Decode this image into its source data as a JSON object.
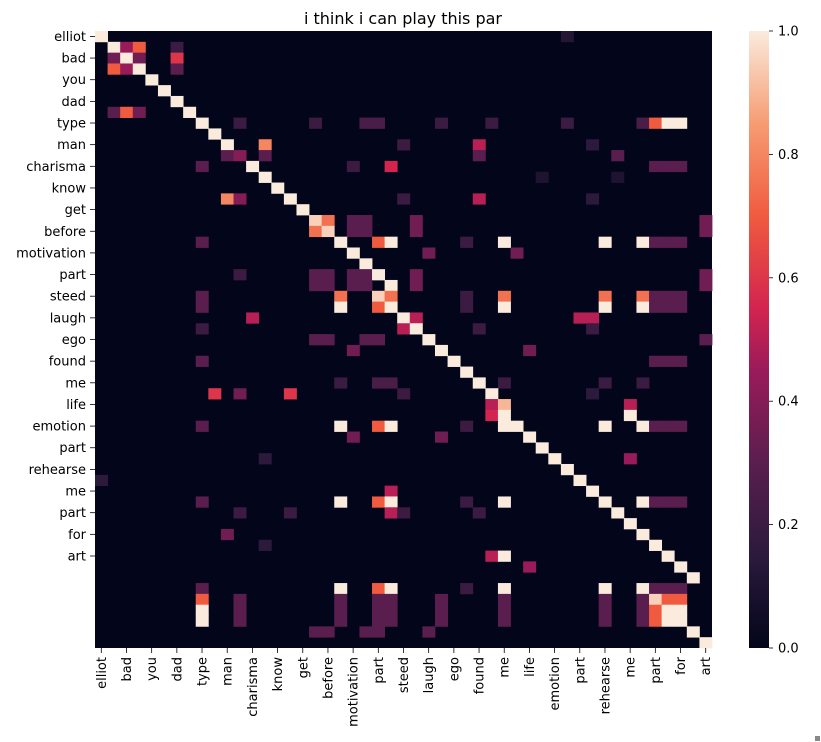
{
  "chart_data": {
    "type": "heatmap",
    "title": "i think i can play this par",
    "tokens": [
      "elliot",
      "",
      "bad",
      "",
      "you",
      "",
      "dad",
      "",
      "type",
      "",
      "man",
      "",
      "charisma",
      "",
      "know",
      "",
      "get",
      "",
      "before",
      "",
      "motivation",
      "",
      "part",
      "",
      "steed",
      "",
      "laugh",
      "",
      "ego",
      "",
      "found",
      "",
      "me",
      "",
      "life",
      "",
      "emotion",
      "",
      "part",
      "",
      "rehearse",
      "",
      "me",
      "",
      "part",
      "",
      "for",
      "",
      "art",
      ""
    ],
    "row_tick_labels": [
      "elliot",
      "bad",
      "you",
      "dad",
      "type",
      "man",
      "charisma",
      "know",
      "get",
      "before",
      "motivation",
      "part",
      "steed",
      "laugh",
      "ego",
      "found",
      "me",
      "life",
      "emotion",
      "part",
      "rehearse",
      "me",
      "part",
      "for",
      "art"
    ],
    "col_tick_labels": [
      "elliot",
      "bad",
      "you",
      "dad",
      "type",
      "man",
      "charisma",
      "know",
      "get",
      "before",
      "motivation",
      "part",
      "steed",
      "laugh",
      "ego",
      "found",
      "me",
      "life",
      "emotion",
      "part",
      "rehearse",
      "me",
      "part",
      "for",
      "art"
    ],
    "colorbar": {
      "ticks": [
        "0.0",
        "0.2",
        "0.4",
        "0.6",
        "0.8",
        "1.0"
      ],
      "vmin": 0.0,
      "vmax": 1.0
    },
    "cells": [
      [
        0,
        0,
        1.0
      ],
      [
        0,
        37,
        0.12
      ],
      [
        1,
        1,
        1.0
      ],
      [
        1,
        2,
        0.45
      ],
      [
        1,
        3,
        0.7
      ],
      [
        1,
        6,
        0.2
      ],
      [
        2,
        1,
        0.35
      ],
      [
        2,
        2,
        1.0
      ],
      [
        2,
        3,
        0.35
      ],
      [
        2,
        6,
        0.6
      ],
      [
        3,
        1,
        0.7
      ],
      [
        3,
        2,
        0.45
      ],
      [
        3,
        3,
        1.0
      ],
      [
        3,
        6,
        0.3
      ],
      [
        4,
        4,
        1.0
      ],
      [
        5,
        5,
        1.0
      ],
      [
        6,
        6,
        1.0
      ],
      [
        7,
        1,
        0.3
      ],
      [
        7,
        2,
        0.7
      ],
      [
        7,
        3,
        0.35
      ],
      [
        7,
        7,
        1.0
      ],
      [
        8,
        8,
        1.0
      ],
      [
        8,
        11,
        0.2
      ],
      [
        8,
        17,
        0.2
      ],
      [
        8,
        21,
        0.25
      ],
      [
        8,
        22,
        0.25
      ],
      [
        8,
        27,
        0.2
      ],
      [
        8,
        31,
        0.2
      ],
      [
        8,
        37,
        0.2
      ],
      [
        8,
        43,
        0.25
      ],
      [
        8,
        44,
        0.7
      ],
      [
        8,
        45,
        1.0
      ],
      [
        8,
        46,
        1.0
      ],
      [
        9,
        9,
        1.0
      ],
      [
        10,
        10,
        1.0
      ],
      [
        10,
        13,
        0.8
      ],
      [
        10,
        24,
        0.2
      ],
      [
        10,
        30,
        0.5
      ],
      [
        10,
        39,
        0.15
      ],
      [
        11,
        10,
        0.3
      ],
      [
        11,
        11,
        0.4
      ],
      [
        11,
        13,
        0.3
      ],
      [
        11,
        30,
        0.3
      ],
      [
        11,
        41,
        0.3
      ],
      [
        12,
        8,
        0.3
      ],
      [
        12,
        12,
        1.0
      ],
      [
        12,
        20,
        0.2
      ],
      [
        12,
        23,
        0.55
      ],
      [
        12,
        44,
        0.3
      ],
      [
        12,
        45,
        0.3
      ],
      [
        12,
        46,
        0.3
      ],
      [
        13,
        13,
        1.0
      ],
      [
        13,
        35,
        0.1
      ],
      [
        13,
        41,
        0.1
      ],
      [
        14,
        14,
        1.0
      ],
      [
        15,
        10,
        0.8
      ],
      [
        15,
        11,
        0.4
      ],
      [
        15,
        15,
        1.0
      ],
      [
        15,
        24,
        0.2
      ],
      [
        15,
        30,
        0.5
      ],
      [
        15,
        39,
        0.15
      ],
      [
        16,
        16,
        1.0
      ],
      [
        17,
        17,
        0.95
      ],
      [
        17,
        18,
        0.75
      ],
      [
        17,
        20,
        0.3
      ],
      [
        17,
        21,
        0.3
      ],
      [
        17,
        25,
        0.35
      ],
      [
        17,
        48,
        0.35
      ],
      [
        18,
        17,
        0.75
      ],
      [
        18,
        18,
        0.95
      ],
      [
        18,
        20,
        0.3
      ],
      [
        18,
        21,
        0.3
      ],
      [
        18,
        25,
        0.35
      ],
      [
        18,
        48,
        0.35
      ],
      [
        19,
        8,
        0.3
      ],
      [
        19,
        19,
        1.0
      ],
      [
        19,
        22,
        0.7
      ],
      [
        19,
        23,
        1.0
      ],
      [
        19,
        29,
        0.2
      ],
      [
        19,
        32,
        1.0
      ],
      [
        19,
        40,
        1.0
      ],
      [
        19,
        43,
        1.0
      ],
      [
        19,
        44,
        0.3
      ],
      [
        19,
        45,
        0.3
      ],
      [
        19,
        46,
        0.3
      ],
      [
        20,
        20,
        1.0
      ],
      [
        20,
        26,
        0.35
      ],
      [
        20,
        33,
        0.35
      ],
      [
        21,
        21,
        1.0
      ],
      [
        22,
        11,
        0.2
      ],
      [
        22,
        17,
        0.3
      ],
      [
        22,
        18,
        0.3
      ],
      [
        22,
        20,
        0.3
      ],
      [
        22,
        21,
        0.3
      ],
      [
        22,
        22,
        1.0
      ],
      [
        22,
        25,
        0.35
      ],
      [
        22,
        48,
        0.35
      ],
      [
        23,
        17,
        0.3
      ],
      [
        23,
        18,
        0.3
      ],
      [
        23,
        20,
        0.3
      ],
      [
        23,
        21,
        0.3
      ],
      [
        23,
        23,
        1.0
      ],
      [
        23,
        25,
        0.35
      ],
      [
        23,
        48,
        0.35
      ],
      [
        24,
        8,
        0.3
      ],
      [
        24,
        19,
        0.75
      ],
      [
        24,
        22,
        0.95
      ],
      [
        24,
        23,
        0.75
      ],
      [
        24,
        29,
        0.2
      ],
      [
        24,
        32,
        0.75
      ],
      [
        24,
        40,
        0.75
      ],
      [
        24,
        43,
        0.75
      ],
      [
        24,
        44,
        0.3
      ],
      [
        24,
        45,
        0.3
      ],
      [
        24,
        46,
        0.3
      ],
      [
        25,
        8,
        0.3
      ],
      [
        25,
        19,
        1.0
      ],
      [
        25,
        22,
        0.7
      ],
      [
        25,
        23,
        1.0
      ],
      [
        25,
        29,
        0.2
      ],
      [
        25,
        32,
        1.0
      ],
      [
        25,
        40,
        1.0
      ],
      [
        25,
        43,
        1.0
      ],
      [
        25,
        44,
        0.3
      ],
      [
        25,
        45,
        0.3
      ],
      [
        25,
        46,
        0.3
      ],
      [
        26,
        12,
        0.5
      ],
      [
        26,
        24,
        1.0
      ],
      [
        26,
        25,
        0.5
      ],
      [
        26,
        38,
        0.5
      ],
      [
        26,
        39,
        0.5
      ],
      [
        27,
        8,
        0.2
      ],
      [
        27,
        24,
        0.5
      ],
      [
        27,
        25,
        1.0
      ],
      [
        27,
        30,
        0.2
      ],
      [
        27,
        39,
        0.2
      ],
      [
        28,
        17,
        0.3
      ],
      [
        28,
        18,
        0.3
      ],
      [
        28,
        21,
        0.3
      ],
      [
        28,
        22,
        0.3
      ],
      [
        28,
        26,
        1.0
      ],
      [
        28,
        48,
        0.3
      ],
      [
        29,
        20,
        0.35
      ],
      [
        29,
        27,
        1.0
      ],
      [
        29,
        34,
        0.35
      ],
      [
        30,
        8,
        0.3
      ],
      [
        30,
        28,
        1.0
      ],
      [
        30,
        44,
        0.3
      ],
      [
        30,
        45,
        0.3
      ],
      [
        30,
        46,
        0.3
      ],
      [
        31,
        29,
        1.0
      ],
      [
        32,
        19,
        0.2
      ],
      [
        32,
        22,
        0.25
      ],
      [
        32,
        23,
        0.25
      ],
      [
        32,
        30,
        1.0
      ],
      [
        32,
        32,
        0.2
      ],
      [
        32,
        40,
        0.2
      ],
      [
        32,
        43,
        0.2
      ],
      [
        33,
        9,
        0.6
      ],
      [
        33,
        11,
        0.35
      ],
      [
        33,
        15,
        0.6
      ],
      [
        33,
        24,
        0.2
      ],
      [
        33,
        31,
        1.0
      ],
      [
        33,
        39,
        0.15
      ],
      [
        34,
        31,
        0.5
      ],
      [
        34,
        32,
        0.9
      ],
      [
        34,
        42,
        0.5
      ],
      [
        35,
        31,
        0.55
      ],
      [
        35,
        32,
        1.0
      ],
      [
        35,
        42,
        1.0
      ],
      [
        36,
        8,
        0.3
      ],
      [
        36,
        19,
        1.0
      ],
      [
        36,
        22,
        0.7
      ],
      [
        36,
        23,
        1.0
      ],
      [
        36,
        29,
        0.2
      ],
      [
        36,
        32,
        1.0
      ],
      [
        36,
        33,
        1.0
      ],
      [
        36,
        40,
        1.0
      ],
      [
        36,
        43,
        1.0
      ],
      [
        36,
        44,
        0.3
      ],
      [
        36,
        45,
        0.3
      ],
      [
        36,
        46,
        0.3
      ],
      [
        37,
        20,
        0.35
      ],
      [
        37,
        27,
        0.35
      ],
      [
        37,
        34,
        1.0
      ],
      [
        38,
        35,
        1.0
      ],
      [
        39,
        13,
        0.15
      ],
      [
        39,
        36,
        1.0
      ],
      [
        39,
        42,
        0.45
      ],
      [
        40,
        37,
        1.0
      ],
      [
        41,
        0,
        0.15
      ],
      [
        41,
        38,
        1.0
      ],
      [
        42,
        23,
        0.5
      ],
      [
        42,
        39,
        1.0
      ],
      [
        43,
        8,
        0.3
      ],
      [
        43,
        19,
        1.0
      ],
      [
        43,
        22,
        0.7
      ],
      [
        43,
        23,
        1.0
      ],
      [
        43,
        29,
        0.2
      ],
      [
        43,
        32,
        1.0
      ],
      [
        43,
        40,
        1.0
      ],
      [
        43,
        43,
        1.0
      ],
      [
        43,
        44,
        0.3
      ],
      [
        43,
        45,
        0.3
      ],
      [
        43,
        46,
        0.3
      ],
      [
        44,
        11,
        0.2
      ],
      [
        44,
        15,
        0.2
      ],
      [
        44,
        23,
        0.5
      ],
      [
        44,
        24,
        0.2
      ],
      [
        44,
        30,
        0.2
      ],
      [
        44,
        41,
        1.0
      ],
      [
        45,
        42,
        1.0
      ],
      [
        46,
        10,
        0.35
      ],
      [
        46,
        43,
        1.0
      ],
      [
        47,
        13,
        0.15
      ],
      [
        47,
        44,
        1.0
      ],
      [
        48,
        31,
        0.5
      ],
      [
        48,
        32,
        1.0
      ],
      [
        48,
        45,
        1.0
      ],
      [
        49,
        34,
        0.45
      ],
      [
        49,
        46,
        1.0
      ],
      [
        50,
        47,
        1.0
      ],
      [
        51,
        8,
        0.3
      ],
      [
        51,
        19,
        1.0
      ],
      [
        51,
        22,
        0.7
      ],
      [
        51,
        23,
        1.0
      ],
      [
        51,
        29,
        0.2
      ],
      [
        51,
        32,
        1.0
      ],
      [
        51,
        40,
        1.0
      ],
      [
        51,
        43,
        1.0
      ],
      [
        51,
        44,
        0.3
      ],
      [
        51,
        45,
        0.3
      ],
      [
        51,
        46,
        0.3
      ],
      [
        52,
        8,
        0.7
      ],
      [
        52,
        11,
        0.3
      ],
      [
        52,
        19,
        0.3
      ],
      [
        52,
        22,
        0.3
      ],
      [
        52,
        23,
        0.3
      ],
      [
        52,
        27,
        0.3
      ],
      [
        52,
        32,
        0.3
      ],
      [
        52,
        40,
        0.3
      ],
      [
        52,
        43,
        0.3
      ],
      [
        52,
        44,
        0.95
      ],
      [
        52,
        45,
        0.7
      ],
      [
        52,
        46,
        0.7
      ],
      [
        53,
        8,
        1.0
      ],
      [
        53,
        11,
        0.3
      ],
      [
        53,
        19,
        0.3
      ],
      [
        53,
        22,
        0.3
      ],
      [
        53,
        23,
        0.3
      ],
      [
        53,
        27,
        0.3
      ],
      [
        53,
        32,
        0.3
      ],
      [
        53,
        40,
        0.3
      ],
      [
        53,
        43,
        0.3
      ],
      [
        53,
        44,
        0.7
      ],
      [
        53,
        45,
        1.0
      ],
      [
        53,
        46,
        1.0
      ],
      [
        54,
        8,
        1.0
      ],
      [
        54,
        11,
        0.3
      ],
      [
        54,
        19,
        0.3
      ],
      [
        54,
        22,
        0.3
      ],
      [
        54,
        23,
        0.3
      ],
      [
        54,
        27,
        0.3
      ],
      [
        54,
        32,
        0.3
      ],
      [
        54,
        40,
        0.3
      ],
      [
        54,
        43,
        0.3
      ],
      [
        54,
        44,
        0.7
      ],
      [
        54,
        45,
        1.0
      ],
      [
        54,
        46,
        1.0
      ],
      [
        55,
        17,
        0.3
      ],
      [
        55,
        18,
        0.3
      ],
      [
        55,
        21,
        0.3
      ],
      [
        55,
        22,
        0.3
      ],
      [
        55,
        26,
        0.3
      ],
      [
        55,
        47,
        1.0
      ],
      [
        56,
        48,
        1.0
      ]
    ]
  }
}
